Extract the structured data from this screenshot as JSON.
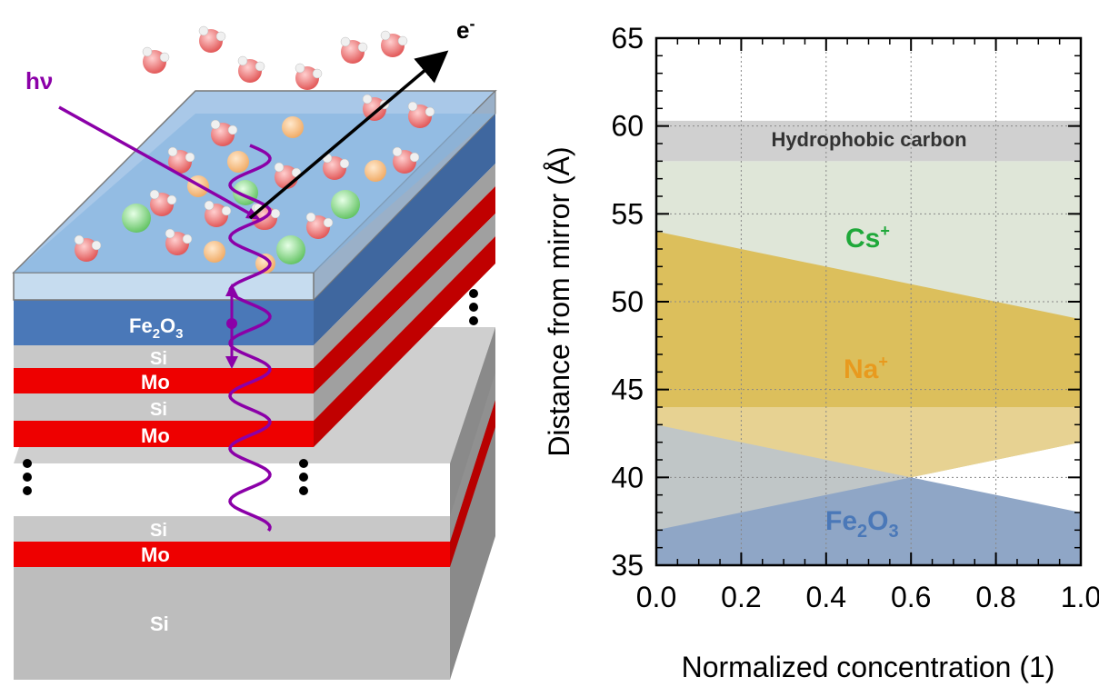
{
  "diagram": {
    "photon_label": "hν",
    "electron_label": "e",
    "electron_sup": "-",
    "layers": {
      "fe2o3": {
        "main": "Fe",
        "sub1": "2",
        "mid": "O",
        "sub2": "3"
      },
      "si": "Si",
      "mo": "Mo"
    },
    "colors": {
      "fe2o3": "#4a78b8",
      "si": "#c8c8c8",
      "mo": "#ee0000",
      "water": "#9ec3e6",
      "photon": "#8b00a8",
      "cs_ion": "#7fd07f",
      "na_ion": "#f5c080"
    }
  },
  "chart_data": {
    "type": "area",
    "xlabel": "Normalized concentration (1)",
    "ylabel": "Distance from mirror (Å)",
    "xlim": [
      0,
      1
    ],
    "ylim": [
      35,
      65
    ],
    "x_ticks": [
      "0.0",
      "0.2",
      "0.4",
      "0.6",
      "0.8",
      "1.0"
    ],
    "y_ticks": [
      "35",
      "40",
      "45",
      "50",
      "55",
      "60",
      "65"
    ],
    "grid": true,
    "regions": [
      {
        "name": "Hydrophobic carbon",
        "color": "#d0d0d0",
        "polygon": [
          [
            0,
            58
          ],
          [
            1,
            58
          ],
          [
            1,
            60.3
          ],
          [
            0,
            60.3
          ]
        ]
      },
      {
        "name": "Cs+",
        "color": "#dfe6d8",
        "polygon": [
          [
            0,
            37
          ],
          [
            0,
            58
          ],
          [
            1,
            58
          ],
          [
            1,
            42
          ]
        ]
      },
      {
        "name": "Na+",
        "color": "#dcbf5c",
        "polygon": [
          [
            0,
            37
          ],
          [
            0,
            54
          ],
          [
            1,
            49
          ],
          [
            1,
            42
          ]
        ]
      },
      {
        "name": "Fe2O3",
        "color": "#8fa6c6",
        "polygon": [
          [
            0,
            35
          ],
          [
            0,
            43
          ],
          [
            1,
            38
          ],
          [
            1,
            35
          ]
        ]
      }
    ],
    "overlay": {
      "color": "#f2e6c8",
      "opacity": 0.5,
      "polygon": [
        [
          0,
          37
        ],
        [
          0,
          44
        ],
        [
          1,
          44
        ],
        [
          1,
          42
        ]
      ]
    },
    "labels": {
      "hydrophobic": "Hydrophobic carbon",
      "cs": "Cs",
      "cs_sup": "+",
      "na": "Na",
      "na_sup": "+",
      "fe": "Fe",
      "fe_sub1": "2",
      "fe_o": "O",
      "fe_sub2": "3"
    },
    "label_colors": {
      "cs": "#1fa83a",
      "na": "#e89a1e",
      "fe": "#4a78b8",
      "hydrophobic": "#333333"
    }
  }
}
